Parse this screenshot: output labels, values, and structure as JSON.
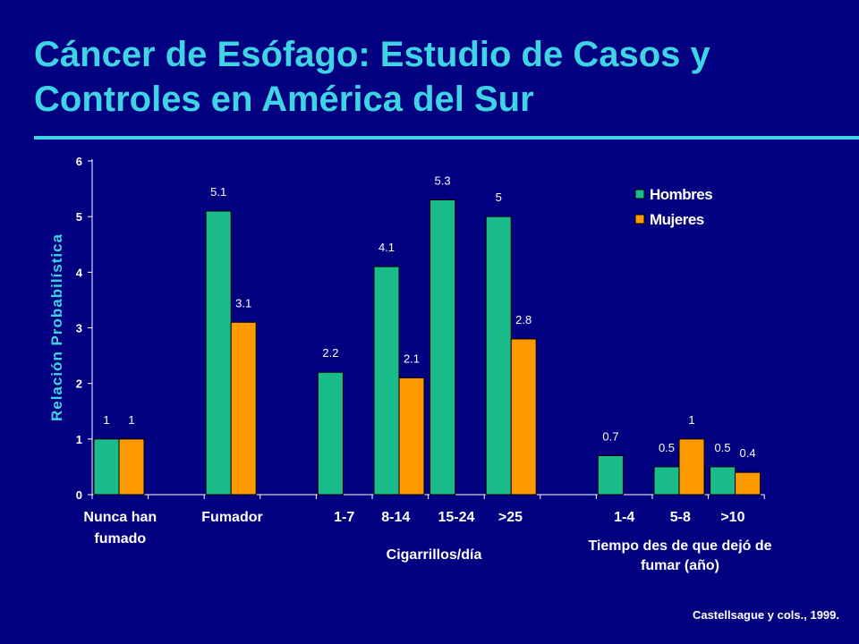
{
  "slide": {
    "title": "Cáncer de Esófago: Estudio de Casos y Controles en América del Sur",
    "citation": "Castellsague y cols., 1999."
  },
  "colors": {
    "background": "#000080",
    "title": "#3ED4E6",
    "hombres": "#1ABC8C",
    "mujeres": "#FF9900"
  },
  "chart_data": {
    "type": "bar",
    "ylabel": "Relación Probabilística",
    "ylim": [
      0,
      6
    ],
    "yticks": [
      0,
      1,
      2,
      3,
      4,
      5,
      6
    ],
    "grid": false,
    "legend_position": "top-right",
    "categories": [
      "Nunca han fumado",
      "Fumador",
      "1-7",
      "8-14",
      "15-24",
      ">25",
      "1-4",
      "5-8",
      ">10"
    ],
    "series": [
      {
        "name": "Hombres",
        "values": [
          1,
          5.1,
          2.2,
          4.1,
          5.3,
          5,
          0.7,
          0.5,
          0.5
        ]
      },
      {
        "name": "Mujeres",
        "values": [
          1,
          3.1,
          null,
          2.1,
          null,
          2.8,
          null,
          1,
          0.4
        ]
      }
    ],
    "group_labels": [
      {
        "text": "Cigarrillos/día",
        "categories": [
          "1-7",
          "8-14",
          "15-24",
          ">25"
        ]
      },
      {
        "text": "Tiempo des de que dejó de fumar (año)",
        "categories": [
          "1-4",
          "5-8",
          ">10"
        ]
      }
    ]
  }
}
